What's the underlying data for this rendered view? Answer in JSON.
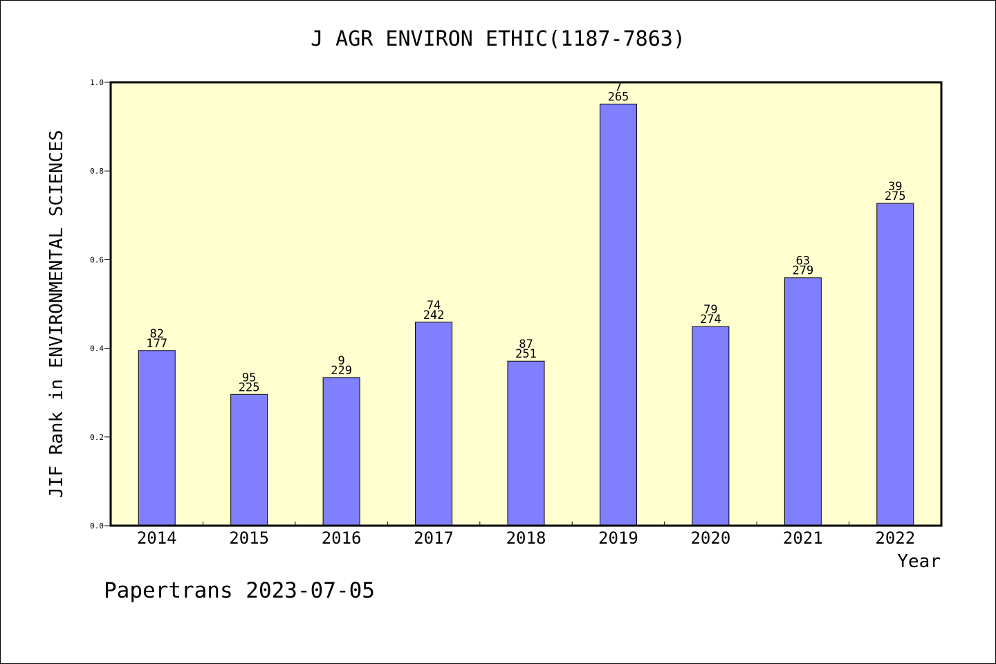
{
  "chart_data": {
    "type": "bar",
    "title": "J AGR ENVIRON ETHIC(1187-7863)",
    "xlabel": "Year",
    "ylabel": "JIF Rank in ENVIRONMENTAL SCIENCES",
    "ylim": [
      0,
      1.0
    ],
    "yticks": [
      "0.0",
      "0.2",
      "0.4",
      "0.6",
      "0.8",
      "1.0"
    ],
    "grid": false,
    "categories": [
      "2014",
      "2015",
      "2016",
      "2017",
      "2018",
      "2019",
      "2020",
      "2021",
      "2022"
    ],
    "values": [
      0.395,
      0.296,
      0.334,
      0.459,
      0.371,
      0.951,
      0.449,
      0.559,
      0.727
    ],
    "label_rank": [
      "82",
      "95",
      "9",
      "74",
      "87",
      "7",
      "79",
      "63",
      "39"
    ],
    "label_total": [
      "177",
      "225",
      "229",
      "242",
      "251",
      "265",
      "274",
      "279",
      "275"
    ],
    "colors": {
      "bar_fill": "#8080ff",
      "plot_background": "#ffffd0",
      "axis": "#000000"
    }
  },
  "footer": "Papertrans 2023-07-05"
}
